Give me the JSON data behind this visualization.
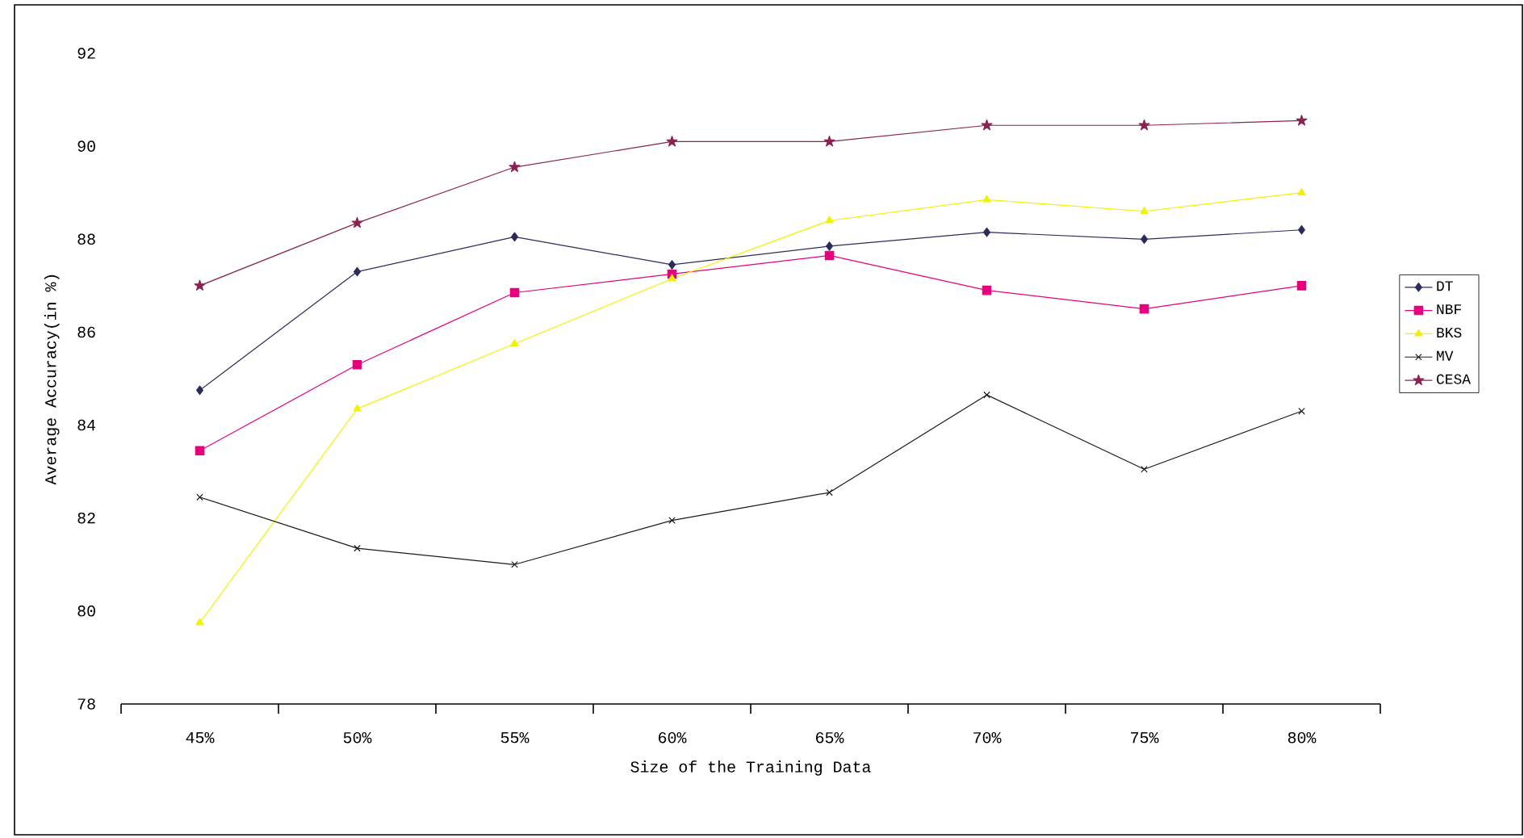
{
  "chart_data": {
    "type": "line",
    "xlabel": "Size of the Training Data",
    "ylabel": "Average Accuracy(in %)",
    "categories": [
      "45%",
      "50%",
      "55%",
      "60%",
      "65%",
      "70%",
      "75%",
      "80%"
    ],
    "ylim": [
      78,
      92
    ],
    "yticks": [
      78,
      80,
      82,
      84,
      86,
      88,
      90,
      92
    ],
    "legend": "right",
    "line_style": "solid",
    "series": [
      {
        "name": "DT",
        "color": "#2b2b5c",
        "marker": "diamond",
        "values": [
          84.75,
          87.3,
          88.05,
          87.45,
          87.85,
          88.15,
          88.0,
          88.2
        ]
      },
      {
        "name": "NBF",
        "color": "#e6007e",
        "marker": "square",
        "values": [
          83.45,
          85.3,
          86.85,
          87.25,
          87.65,
          86.9,
          86.5,
          87.0
        ]
      },
      {
        "name": "BKS",
        "color": "#f2f200",
        "marker": "triangle",
        "values": [
          79.75,
          84.35,
          85.75,
          87.15,
          88.4,
          88.85,
          88.6,
          89.0
        ]
      },
      {
        "name": "MV",
        "color": "#1a1a1a",
        "marker": "cross",
        "values": [
          82.45,
          81.35,
          81.0,
          81.95,
          82.55,
          84.65,
          83.05,
          84.3
        ]
      },
      {
        "name": "CESA",
        "color": "#8b2252",
        "marker": "star",
        "values": [
          87.0,
          88.35,
          89.55,
          90.1,
          90.1,
          90.45,
          90.45,
          90.55
        ]
      }
    ]
  }
}
